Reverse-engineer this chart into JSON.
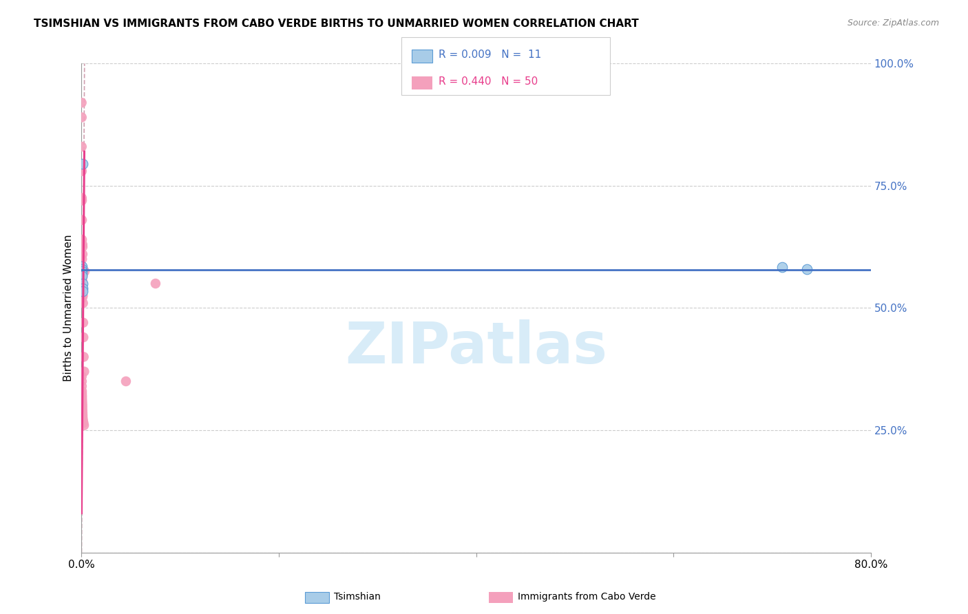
{
  "title": "TSIMSHIAN VS IMMIGRANTS FROM CABO VERDE BIRTHS TO UNMARRIED WOMEN CORRELATION CHART",
  "source": "Source: ZipAtlas.com",
  "ylabel": "Births to Unmarried Women",
  "xlim": [
    0.0,
    80.0
  ],
  "ylim": [
    0.0,
    100.0
  ],
  "tsimshian_color": "#a8cce8",
  "cabo_color": "#f4a0bc",
  "tsimshian_edge_color": "#5b9bd5",
  "tsimshian_trend_color": "#4472c4",
  "cabo_trend_color": "#e83e8c",
  "diagonal_color": "#d0a0b0",
  "diagonal_style": "--",
  "watermark": "ZIPatlas",
  "watermark_color": "#d8ecf8",
  "tsimshian_pts_x": [
    0.02,
    0.03,
    0.04,
    0.05,
    0.05,
    0.1,
    0.1,
    0.12,
    0.14,
    71.0,
    73.5
  ],
  "tsimshian_pts_y": [
    58.5,
    58.0,
    57.5,
    57.0,
    56.5,
    79.5,
    55.0,
    54.0,
    53.5,
    58.3,
    58.0
  ],
  "cabo_pts_x": [
    0.01,
    0.02,
    0.02,
    0.03,
    0.03,
    0.04,
    0.04,
    0.04,
    0.05,
    0.05,
    0.05,
    0.05,
    0.06,
    0.06,
    0.07,
    0.08,
    0.08,
    0.09,
    0.1,
    0.1,
    0.11,
    0.12,
    0.13,
    0.14,
    0.15,
    0.17,
    0.19,
    0.22,
    0.27,
    0.32,
    0.02,
    0.03,
    0.03,
    0.04,
    0.04,
    0.05,
    0.05,
    0.06,
    0.07,
    0.08,
    0.08,
    0.09,
    0.1,
    0.11,
    0.12,
    0.15,
    0.2,
    0.25,
    4.5,
    7.5
  ],
  "cabo_pts_y": [
    92.0,
    89.0,
    83.0,
    78.0,
    72.5,
    72.0,
    68.0,
    64.0,
    60.0,
    58.5,
    57.5,
    56.0,
    54.5,
    52.0,
    58.0,
    57.0,
    55.5,
    63.0,
    62.5,
    61.0,
    57.5,
    56.5,
    54.0,
    52.5,
    51.0,
    47.0,
    44.0,
    40.0,
    37.0,
    57.5,
    36.0,
    35.0,
    34.0,
    33.0,
    32.5,
    32.0,
    31.5,
    31.0,
    30.5,
    30.0,
    29.5,
    29.0,
    28.5,
    28.0,
    27.5,
    27.0,
    26.5,
    26.0,
    35.0,
    55.0
  ]
}
